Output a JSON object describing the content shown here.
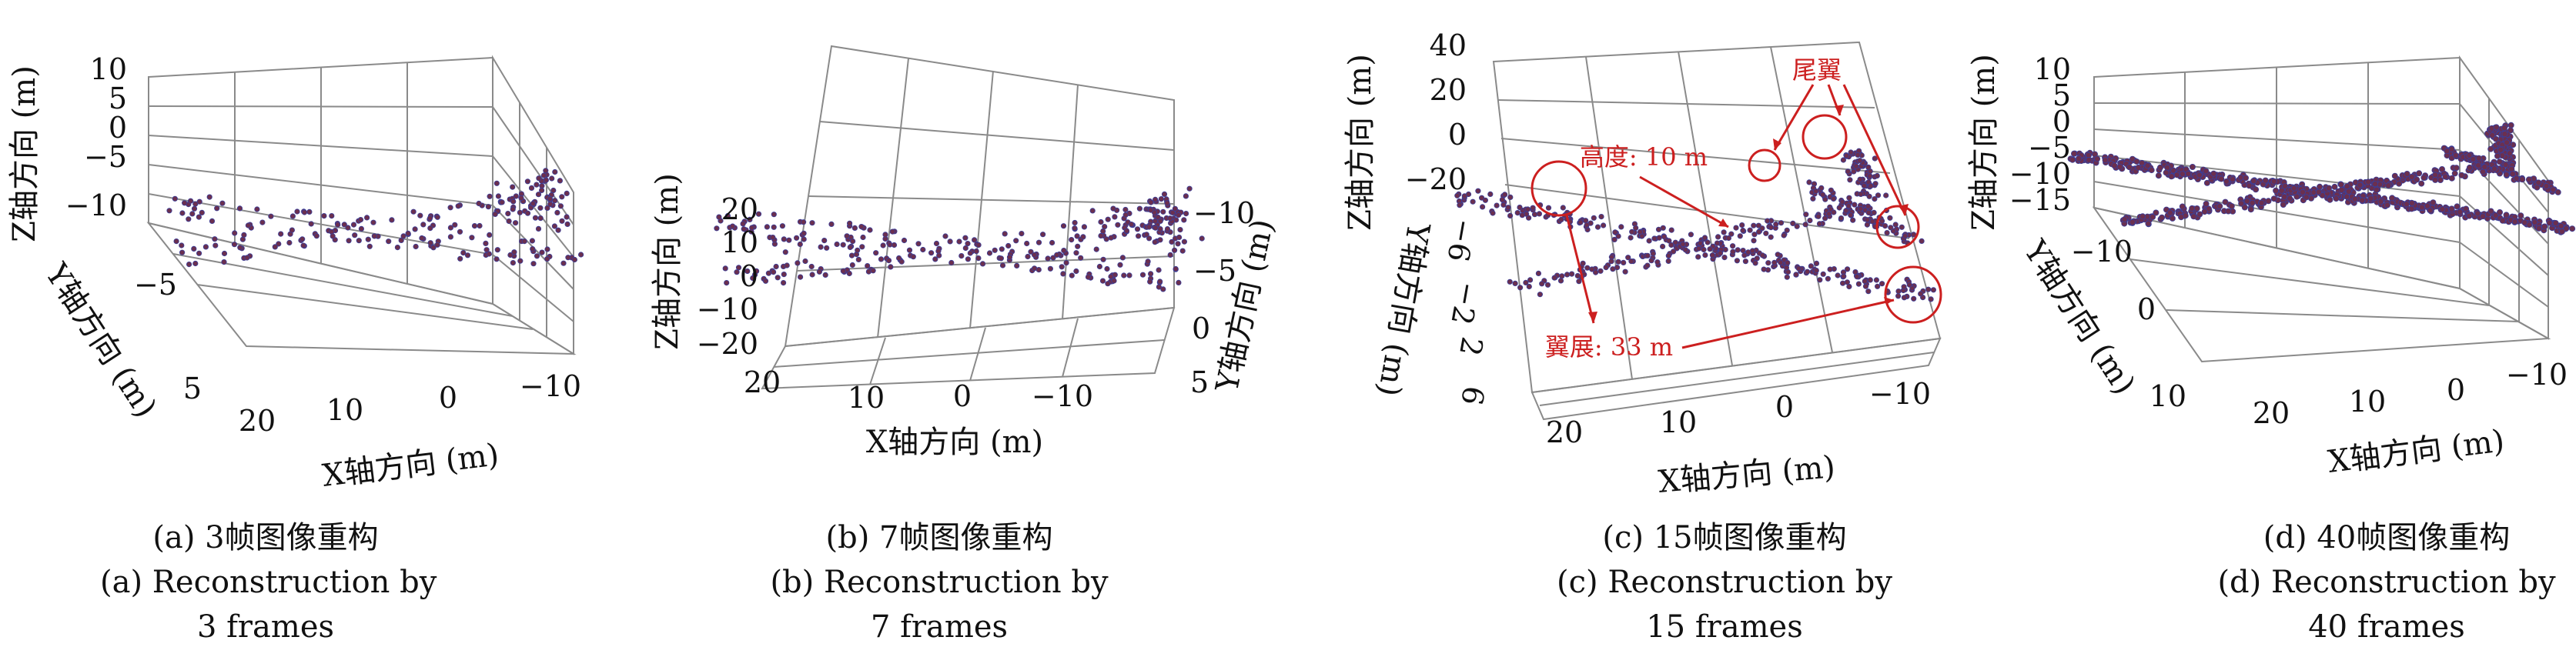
{
  "chart_data": [
    {
      "type": "scatter",
      "subplot": "a",
      "projection": "3d",
      "xlabel": "X轴方向 (m)",
      "ylabel": "Y轴方向 (m)",
      "zlabel": "Z轴方向 (m)",
      "xticks": [
        "20",
        "10",
        "0",
        "−10"
      ],
      "yticks": [
        "−5",
        "5"
      ],
      "zticks": [
        "10",
        "5",
        "0",
        "−5",
        "−10"
      ],
      "xlim": [
        -12,
        22
      ],
      "ylim": [
        -8,
        7
      ],
      "zlim": [
        -10,
        10
      ],
      "grid": true,
      "marker_color": "#6b2f4f",
      "caption_cn": "(a) 3帧图像重构",
      "caption_en_1": "(a) Reconstruction by",
      "caption_en_2": "3 frames",
      "n_points": 230
    },
    {
      "type": "scatter",
      "subplot": "b",
      "projection": "3d",
      "xlabel": "X轴方向 (m)",
      "ylabel": "Y轴方向 (m)",
      "zlabel": "Z轴方向 (m)",
      "xticks": [
        "20",
        "10",
        "0",
        "−10"
      ],
      "yticks": [
        "−10",
        "−5",
        "0",
        "5"
      ],
      "zticks": [
        "20",
        "10",
        "0",
        "−10",
        "−20"
      ],
      "xlim": [
        -15,
        20
      ],
      "ylim": [
        -10,
        5
      ],
      "zlim": [
        -20,
        25
      ],
      "grid": true,
      "marker_color": "#6b2f4f",
      "caption_cn": "(b) 7帧图像重构",
      "caption_en_1": "(b) Reconstruction by",
      "caption_en_2": "7 frames",
      "n_points": 330
    },
    {
      "type": "scatter",
      "subplot": "c",
      "projection": "3d",
      "xlabel": "X轴方向 (m)",
      "ylabel": "Y轴方向 (m)",
      "zlabel": "Z轴方向 (m)",
      "xticks": [
        "20",
        "10",
        "0",
        "−10"
      ],
      "yticks": [
        "−6",
        "−2",
        "2",
        "6"
      ],
      "zticks": [
        "40",
        "20",
        "0",
        "−20"
      ],
      "xlim": [
        -12,
        22
      ],
      "ylim": [
        -8,
        7
      ],
      "zlim": [
        -25,
        40
      ],
      "grid": true,
      "marker_color": "#6b2f4f",
      "annotation_color": "#cc1f1f",
      "annotations": {
        "tail": "尾翼",
        "height": "高度: 10 m",
        "span": "翼展: 33 m"
      },
      "caption_cn": "(c) 15帧图像重构",
      "caption_en_1": "(c) Reconstruction by",
      "caption_en_2": "15 frames",
      "n_points": 520
    },
    {
      "type": "scatter",
      "subplot": "d",
      "projection": "3d",
      "xlabel": "X轴方向 (m)",
      "ylabel": "Y轴方向 (m)",
      "zlabel": "Z轴方向 (m)",
      "xticks": [
        "20",
        "10",
        "0",
        "−10"
      ],
      "yticks": [
        "−10",
        "0",
        "10"
      ],
      "zticks": [
        "10",
        "5",
        "0",
        "−5",
        "−10",
        "−15"
      ],
      "xlim": [
        -12,
        22
      ],
      "ylim": [
        -12,
        12
      ],
      "zlim": [
        -15,
        10
      ],
      "grid": true,
      "marker_color": "#6b2f4f",
      "caption_cn": "(d) 40帧图像重构",
      "caption_en_1": "(d) Reconstruction by",
      "caption_en_2": "40 frames",
      "n_points": 900
    }
  ]
}
